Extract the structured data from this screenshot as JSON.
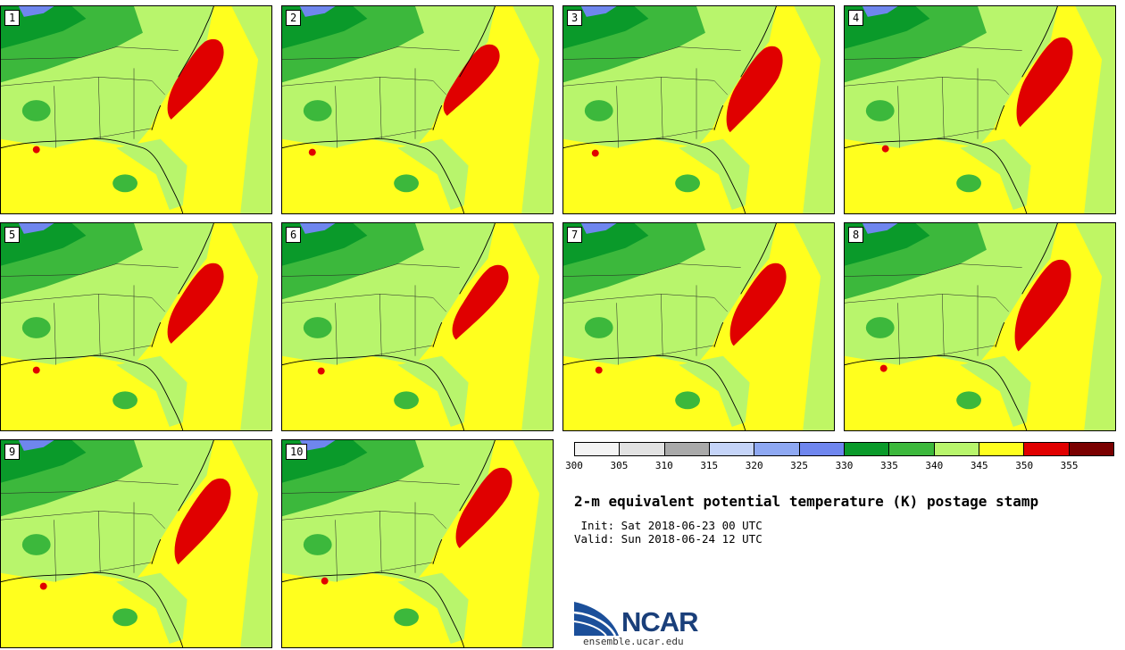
{
  "product": {
    "title": "2-m equivalent potential temperature (K) postage stamp",
    "init": " Init: Sat 2018-06-23 00 UTC",
    "valid": "Valid: Sun 2018-06-24 12 UTC"
  },
  "members": [
    "1",
    "2",
    "3",
    "4",
    "5",
    "6",
    "7",
    "8",
    "9",
    "10"
  ],
  "colorbar": {
    "ticks": [
      "300",
      "305",
      "310",
      "315",
      "320",
      "325",
      "330",
      "335",
      "340",
      "345",
      "350",
      "355"
    ],
    "colors": [
      "#f4f4f4",
      "#e2e2e2",
      "#a9a9a9",
      "#c5d4f8",
      "#8ea8f2",
      "#6f86ee",
      "#0a9a2a",
      "#3cb83c",
      "#b8f56c",
      "#ffff1e",
      "#e00000",
      "#7a0000"
    ]
  },
  "logo": {
    "name": "NCAR",
    "url": "ensemble.ucar.edu"
  }
}
